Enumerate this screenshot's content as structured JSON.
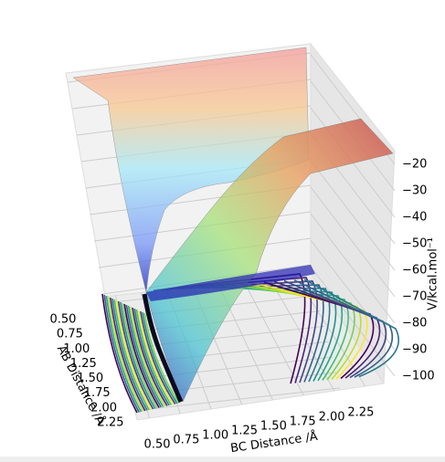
{
  "chart_data": {
    "type": "surface3d",
    "xlabel": "AB Distance /Å",
    "ylabel": "BC Distance /Å",
    "zlabel": "V/kcal.mol⁻¹",
    "xlim": [
      0.4,
      2.4
    ],
    "xticks": [
      {
        "value": 0.5,
        "label": "0.50"
      },
      {
        "value": 0.75,
        "label": "0.75"
      },
      {
        "value": 1.0,
        "label": "1.00"
      },
      {
        "value": 1.25,
        "label": "1.25"
      },
      {
        "value": 1.5,
        "label": "1.50"
      },
      {
        "value": 1.75,
        "label": "1.75"
      },
      {
        "value": 2.0,
        "label": "2.00"
      },
      {
        "value": 2.25,
        "label": "2.25"
      }
    ],
    "ylim": [
      0.4,
      2.4
    ],
    "yticks": [
      {
        "value": 0.5,
        "label": "0.50"
      },
      {
        "value": 0.75,
        "label": "0.75"
      },
      {
        "value": 1.0,
        "label": "1.00"
      },
      {
        "value": 1.25,
        "label": "1.25"
      },
      {
        "value": 1.5,
        "label": "1.50"
      },
      {
        "value": 1.75,
        "label": "1.75"
      },
      {
        "value": 2.0,
        "label": "2.00"
      },
      {
        "value": 2.25,
        "label": "2.25"
      }
    ],
    "zlim": [
      -105,
      -15
    ],
    "zticks": [
      {
        "value": -20,
        "label": "−20"
      },
      {
        "value": -30,
        "label": "−30"
      },
      {
        "value": -40,
        "label": "−40"
      },
      {
        "value": -50,
        "label": "−50"
      },
      {
        "value": -60,
        "label": "−60"
      },
      {
        "value": -70,
        "label": "−70"
      },
      {
        "value": -80,
        "label": "−80"
      },
      {
        "value": -90,
        "label": "−90"
      },
      {
        "value": -100,
        "label": "−100"
      }
    ],
    "grid": true
  }
}
